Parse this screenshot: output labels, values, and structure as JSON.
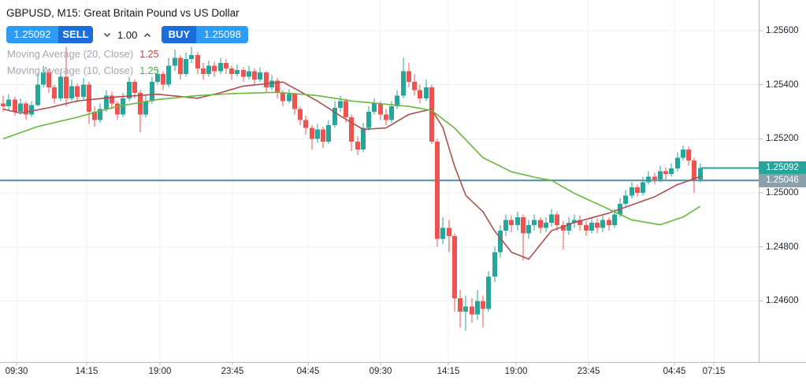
{
  "header": {
    "title": "GBPUSD, M15: Great Britain Pound vs US Dollar"
  },
  "order_panel": {
    "sell_price": "1.25092",
    "sell_label": "SELL",
    "quantity": "1.00",
    "buy_label": "BUY",
    "buy_price": "1.25098"
  },
  "legend": [
    {
      "label": "Moving Average (20, Close)",
      "value": "1.25",
      "value_color": "#b04a4a"
    },
    {
      "label": "Moving Average (10, Close)",
      "value": "1.25",
      "value_color": "#4cb04a"
    }
  ],
  "colors": {
    "up_candle": "#26a69a",
    "down_candle": "#ef5350",
    "ma20_line": "#ad4f4f",
    "ma10_line": "#69b83c",
    "grid": "#eef0f3",
    "axis_border": "#b7bac1",
    "axis_text": "#22262f",
    "title_text": "#131722",
    "legend_text": "#a5a8b0",
    "button_light": "#2e9cf4",
    "button_dark": "#1b6dd8",
    "qty_text": "#131722",
    "chevron": "#50535e",
    "current_price_line": "#26a69a",
    "current_price_badge": "#26a69a",
    "reference_price_line": "#4f8e9b",
    "reference_price_badge": "#8ca0ab"
  },
  "chart_data": {
    "type": "candlestick",
    "symbol": "GBPUSD",
    "timeframe": "M15",
    "title": "GBPUSD, M15: Great Britain Pound vs US Dollar",
    "grid": true,
    "y_axis": {
      "side": "right",
      "range": [
        1.24425,
        1.25715
      ],
      "ticks": [
        {
          "value": 1.256,
          "label": "1.25600"
        },
        {
          "value": 1.254,
          "label": "1.25400"
        },
        {
          "value": 1.252,
          "label": "1.25200"
        },
        {
          "value": 1.25,
          "label": "1.25000"
        },
        {
          "value": 1.248,
          "label": "1.24800"
        },
        {
          "value": 1.246,
          "label": "1.24600"
        }
      ]
    },
    "x_axis": {
      "ticks": [
        {
          "label": "09:30",
          "x": 21
        },
        {
          "label": "14:15",
          "x": 110
        },
        {
          "label": "19:00",
          "x": 203
        },
        {
          "label": "23:45",
          "x": 295
        },
        {
          "label": "04:45",
          "x": 391
        },
        {
          "label": "09:30",
          "x": 483
        },
        {
          "label": "14:15",
          "x": 569
        },
        {
          "label": "19:00",
          "x": 655
        },
        {
          "label": "23:45",
          "x": 747
        },
        {
          "label": "04:45",
          "x": 856
        },
        {
          "label": "07:15",
          "x": 906
        }
      ]
    },
    "price_lines": [
      {
        "label": "1.25092",
        "price": 1.25092,
        "from_x": 890,
        "role": "current"
      },
      {
        "label": "1.25046",
        "price": 1.25046,
        "from_x": 0,
        "role": "reference"
      }
    ],
    "candles": [
      [
        1.2533,
        1.2536,
        1.253,
        1.2532
      ],
      [
        1.2532,
        1.25365,
        1.25305,
        1.25345
      ],
      [
        1.25345,
        1.25355,
        1.25285,
        1.253
      ],
      [
        1.253,
        1.2535,
        1.2529,
        1.2533
      ],
      [
        1.2533,
        1.2534,
        1.2527,
        1.2529
      ],
      [
        1.2529,
        1.2534,
        1.2528,
        1.25325
      ],
      [
        1.25325,
        1.2544,
        1.2532,
        1.254
      ],
      [
        1.254,
        1.2547,
        1.2539,
        1.25445
      ],
      [
        1.25445,
        1.2546,
        1.2537,
        1.2539
      ],
      [
        1.2539,
        1.254,
        1.2533,
        1.2535
      ],
      [
        1.2535,
        1.2545,
        1.2534,
        1.2543
      ],
      [
        1.2543,
        1.2554,
        1.2532,
        1.2535
      ],
      [
        1.2535,
        1.2542,
        1.2534,
        1.25395
      ],
      [
        1.25395,
        1.25405,
        1.25335,
        1.25355
      ],
      [
        1.25355,
        1.25425,
        1.25345,
        1.254
      ],
      [
        1.254,
        1.2541,
        1.25255,
        1.253
      ],
      [
        1.253,
        1.2532,
        1.25245,
        1.2527
      ],
      [
        1.2527,
        1.2533,
        1.2526,
        1.2531
      ],
      [
        1.2531,
        1.2538,
        1.253,
        1.2536
      ],
      [
        1.2536,
        1.25375,
        1.2531,
        1.2533
      ],
      [
        1.2533,
        1.2534,
        1.2527,
        1.2529
      ],
      [
        1.2529,
        1.2537,
        1.2528,
        1.2535
      ],
      [
        1.2535,
        1.2543,
        1.2534,
        1.2541
      ],
      [
        1.2541,
        1.2542,
        1.2535,
        1.2537
      ],
      [
        1.2537,
        1.2538,
        1.25225,
        1.2529
      ],
      [
        1.2529,
        1.2536,
        1.2528,
        1.2534
      ],
      [
        1.2534,
        1.2543,
        1.2533,
        1.2541
      ],
      [
        1.2541,
        1.2546,
        1.254,
        1.2544
      ],
      [
        1.2544,
        1.2545,
        1.2538,
        1.254
      ],
      [
        1.254,
        1.255,
        1.2539,
        1.2547
      ],
      [
        1.2547,
        1.2553,
        1.2545,
        1.255
      ],
      [
        1.255,
        1.2551,
        1.2542,
        1.2544
      ],
      [
        1.2544,
        1.2552,
        1.2543,
        1.25495
      ],
      [
        1.25495,
        1.2554,
        1.2548,
        1.2551
      ],
      [
        1.2551,
        1.2552,
        1.2544,
        1.2546
      ],
      [
        1.2546,
        1.2548,
        1.2542,
        1.2544
      ],
      [
        1.2544,
        1.2549,
        1.2543,
        1.2547
      ],
      [
        1.2547,
        1.25485,
        1.2543,
        1.2545
      ],
      [
        1.2545,
        1.255,
        1.2544,
        1.2548
      ],
      [
        1.2548,
        1.25495,
        1.2544,
        1.2546
      ],
      [
        1.2546,
        1.2547,
        1.2542,
        1.2544
      ],
      [
        1.2544,
        1.25475,
        1.2543,
        1.25455
      ],
      [
        1.25455,
        1.25465,
        1.2541,
        1.2543
      ],
      [
        1.2543,
        1.2547,
        1.2542,
        1.2545
      ],
      [
        1.2545,
        1.2546,
        1.254,
        1.2542
      ],
      [
        1.2542,
        1.25465,
        1.2541,
        1.25445
      ],
      [
        1.25445,
        1.2545,
        1.2537,
        1.2539
      ],
      [
        1.2539,
        1.25435,
        1.2538,
        1.25415
      ],
      [
        1.25415,
        1.25425,
        1.2535,
        1.2537
      ],
      [
        1.2537,
        1.2538,
        1.2532,
        1.2534
      ],
      [
        1.2534,
        1.25385,
        1.2533,
        1.25365
      ],
      [
        1.25365,
        1.2537,
        1.2529,
        1.2531
      ],
      [
        1.2531,
        1.2532,
        1.2525,
        1.2527
      ],
      [
        1.2527,
        1.25285,
        1.25215,
        1.2524
      ],
      [
        1.2524,
        1.2525,
        1.2516,
        1.252
      ],
      [
        1.252,
        1.25255,
        1.25185,
        1.25235
      ],
      [
        1.25235,
        1.25245,
        1.25165,
        1.2519
      ],
      [
        1.2519,
        1.2527,
        1.2518,
        1.2525
      ],
      [
        1.2525,
        1.2534,
        1.2524,
        1.25315
      ],
      [
        1.25315,
        1.2536,
        1.253,
        1.2534
      ],
      [
        1.2534,
        1.2535,
        1.2526,
        1.2528
      ],
      [
        1.2528,
        1.2529,
        1.25155,
        1.2519
      ],
      [
        1.2519,
        1.2521,
        1.2514,
        1.2516
      ],
      [
        1.2516,
        1.2526,
        1.2515,
        1.2524
      ],
      [
        1.2524,
        1.2532,
        1.2523,
        1.253
      ],
      [
        1.253,
        1.2535,
        1.2529,
        1.2533
      ],
      [
        1.2533,
        1.2534,
        1.2527,
        1.2529
      ],
      [
        1.2529,
        1.2531,
        1.2525,
        1.2527
      ],
      [
        1.2527,
        1.2534,
        1.2526,
        1.2532
      ],
      [
        1.2532,
        1.2538,
        1.2531,
        1.2536
      ],
      [
        1.2536,
        1.255,
        1.2535,
        1.2545
      ],
      [
        1.2545,
        1.2548,
        1.2539,
        1.2541
      ],
      [
        1.2541,
        1.2544,
        1.2536,
        1.2538
      ],
      [
        1.2538,
        1.254,
        1.2533,
        1.2535
      ],
      [
        1.2535,
        1.2542,
        1.2534,
        1.2539
      ],
      [
        1.2539,
        1.254,
        1.2518,
        1.2519
      ],
      [
        1.2519,
        1.252,
        1.248,
        1.2483
      ],
      [
        1.2483,
        1.2491,
        1.2481,
        1.2487
      ],
      [
        1.2487,
        1.249,
        1.2478,
        1.2484
      ],
      [
        1.2484,
        1.2485,
        1.2456,
        1.2461
      ],
      [
        1.2461,
        1.2464,
        1.245,
        1.2456
      ],
      [
        1.2456,
        1.2462,
        1.2449,
        1.2458
      ],
      [
        1.2458,
        1.2461,
        1.2452,
        1.2455
      ],
      [
        1.2455,
        1.2464,
        1.2453,
        1.246
      ],
      [
        1.246,
        1.2462,
        1.245,
        1.2457
      ],
      [
        1.2457,
        1.2471,
        1.2456,
        1.2469
      ],
      [
        1.2469,
        1.248,
        1.2467,
        1.2478
      ],
      [
        1.2478,
        1.2488,
        1.2476,
        1.2486
      ],
      [
        1.2486,
        1.2492,
        1.2484,
        1.249
      ],
      [
        1.249,
        1.24915,
        1.24855,
        1.2488
      ],
      [
        1.2488,
        1.2493,
        1.2486,
        1.2491
      ],
      [
        1.2491,
        1.2492,
        1.2475,
        1.2485
      ],
      [
        1.2485,
        1.249,
        1.2483,
        1.2488
      ],
      [
        1.2488,
        1.2492,
        1.2486,
        1.249
      ],
      [
        1.249,
        1.2491,
        1.2485,
        1.2487
      ],
      [
        1.2487,
        1.2491,
        1.24855,
        1.2489
      ],
      [
        1.2489,
        1.2494,
        1.24875,
        1.2492
      ],
      [
        1.2492,
        1.2493,
        1.2486,
        1.2488
      ],
      [
        1.2488,
        1.24895,
        1.2479,
        1.2486
      ],
      [
        1.2486,
        1.2491,
        1.24845,
        1.2489
      ],
      [
        1.2489,
        1.2492,
        1.2487,
        1.249
      ],
      [
        1.249,
        1.24915,
        1.2486,
        1.2488
      ],
      [
        1.2488,
        1.24895,
        1.2484,
        1.2486
      ],
      [
        1.2486,
        1.2491,
        1.2485,
        1.2489
      ],
      [
        1.2489,
        1.24905,
        1.2485,
        1.2487
      ],
      [
        1.2487,
        1.24915,
        1.24855,
        1.249
      ],
      [
        1.249,
        1.2491,
        1.2486,
        1.2488
      ],
      [
        1.2488,
        1.2494,
        1.2487,
        1.2492
      ],
      [
        1.2492,
        1.2498,
        1.2491,
        1.2496
      ],
      [
        1.2496,
        1.2501,
        1.2495,
        1.2499
      ],
      [
        1.2499,
        1.2504,
        1.2498,
        1.2502
      ],
      [
        1.2502,
        1.2503,
        1.24985,
        1.25
      ],
      [
        1.25,
        1.2506,
        1.2499,
        1.2504
      ],
      [
        1.2504,
        1.2508,
        1.2503,
        1.2506
      ],
      [
        1.2506,
        1.25075,
        1.2503,
        1.2505
      ],
      [
        1.2505,
        1.251,
        1.2504,
        1.2508
      ],
      [
        1.2508,
        1.25095,
        1.2505,
        1.2507
      ],
      [
        1.2507,
        1.2511,
        1.2506,
        1.2509
      ],
      [
        1.2509,
        1.2515,
        1.2508,
        1.2513
      ],
      [
        1.2513,
        1.25175,
        1.2512,
        1.2516
      ],
      [
        1.2516,
        1.2517,
        1.251,
        1.2512
      ],
      [
        1.2512,
        1.2513,
        1.25,
        1.2505
      ],
      [
        1.2505,
        1.2511,
        1.2504,
        1.25092
      ]
    ],
    "series": [
      {
        "name": "Moving Average (20, Close)",
        "display_value": "1.25",
        "points": [
          [
            0,
            1.2531
          ],
          [
            3,
            1.25295
          ],
          [
            8,
            1.25315
          ],
          [
            13,
            1.2534
          ],
          [
            20,
            1.25355
          ],
          [
            27,
            1.25365
          ],
          [
            34,
            1.2535
          ],
          [
            38,
            1.2537
          ],
          [
            42,
            1.25395
          ],
          [
            49,
            1.2541
          ],
          [
            55,
            1.2534
          ],
          [
            59,
            1.25285
          ],
          [
            63,
            1.25235
          ],
          [
            67,
            1.2524
          ],
          [
            71,
            1.2529
          ],
          [
            75,
            1.2531
          ],
          [
            77,
            1.2524
          ],
          [
            79,
            1.251
          ],
          [
            81,
            1.2499
          ],
          [
            84,
            1.2493
          ],
          [
            86,
            1.2486
          ],
          [
            89,
            1.2478
          ],
          [
            92,
            1.24755
          ],
          [
            96,
            1.2486
          ],
          [
            100,
            1.2489
          ],
          [
            106,
            1.24925
          ],
          [
            110,
            1.24955
          ],
          [
            114,
            1.24985
          ],
          [
            118,
            1.2503
          ],
          [
            122,
            1.2506
          ]
        ]
      },
      {
        "name": "Moving Average (10, Close)",
        "display_value": "1.25",
        "points": [
          [
            0,
            1.252
          ],
          [
            6,
            1.25245
          ],
          [
            13,
            1.2528
          ],
          [
            20,
            1.2532
          ],
          [
            27,
            1.25345
          ],
          [
            34,
            1.2536
          ],
          [
            41,
            1.25368
          ],
          [
            48,
            1.25372
          ],
          [
            55,
            1.2536
          ],
          [
            61,
            1.2534
          ],
          [
            66,
            1.2533
          ],
          [
            71,
            1.2532
          ],
          [
            75,
            1.25305
          ],
          [
            79,
            1.2524
          ],
          [
            84,
            1.2513
          ],
          [
            89,
            1.25078
          ],
          [
            93,
            1.25058
          ],
          [
            96,
            1.25046
          ],
          [
            100,
            1.24998
          ],
          [
            106,
            1.2494
          ],
          [
            110,
            1.249
          ],
          [
            115,
            1.24882
          ],
          [
            119,
            1.2491
          ],
          [
            122,
            1.2495
          ]
        ]
      }
    ]
  }
}
